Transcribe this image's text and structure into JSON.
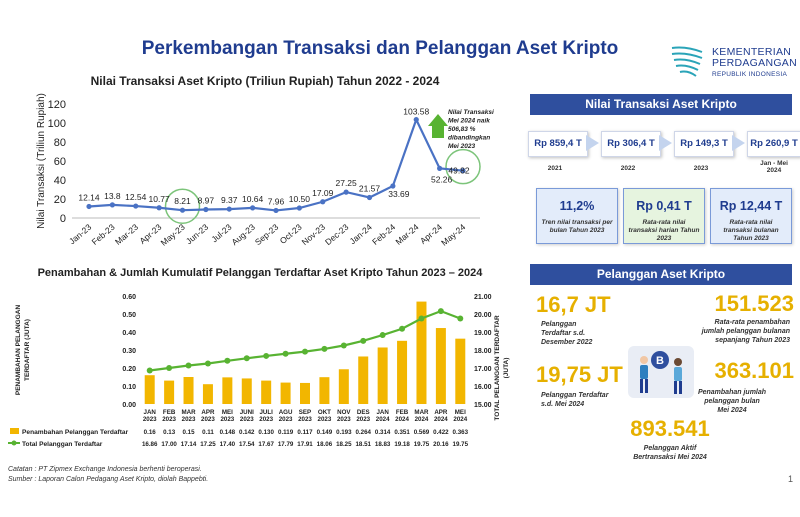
{
  "page": {
    "title": "Perkembangan Transaksi dan Pelanggan Aset Kripto",
    "logo_lines": [
      "KEMENTERIAN",
      "PERDAGANGAN",
      "REPUBLIK INDONESIA"
    ],
    "page_number": "1",
    "notes": [
      "Catatan : PT Zipmex Exchange Indonesia berhenti beroperasi.",
      "Sumber : Laporan Calon Pedagang Aset Kripto, diolah Bappebti."
    ]
  },
  "colors": {
    "brand": "#1f3c8f",
    "line": "#4a72c4",
    "bar": "#f2b600",
    "green_line": "#58b332",
    "banner": "#2f4f9e",
    "kpi": "#e6b000"
  },
  "chart_data": [
    {
      "type": "line",
      "title": "Nilai Transaksi Aset Kripto (Triliun Rupiah) Tahun 2022 - 2024",
      "xlabel": "",
      "ylabel": "Nilai Transaksi (Triliun Rupiah)",
      "ylim": [
        0,
        120
      ],
      "yticks": [
        "0",
        "20",
        "40",
        "60",
        "80",
        "100",
        "120"
      ],
      "categories": [
        "Jan-23",
        "Feb-23",
        "Mar-23",
        "Apr-23",
        "May-23",
        "Jun-23",
        "Jul-23",
        "Aug-23",
        "Sep-23",
        "Oct-23",
        "Nov-23",
        "Dec-23",
        "Jan-24",
        "Feb-24",
        "Mar-24",
        "Apr-24",
        "May-24"
      ],
      "values": [
        12.14,
        13.8,
        12.54,
        10.77,
        8.21,
        8.97,
        9.37,
        10.64,
        7.96,
        10.5,
        17.09,
        27.25,
        21.57,
        33.69,
        103.58,
        52.26,
        49.82
      ],
      "value_labels": [
        "12.14",
        "13.8",
        "12.54",
        "10.77",
        "8.21",
        "8.97",
        "9.37",
        "10.64",
        "7.96",
        "10.50",
        "17.09",
        "27.25",
        "21.57",
        "33.69",
        "103.58",
        "52.26",
        "49.82"
      ],
      "highlighted": [
        "May-23",
        "May-24"
      ],
      "annotation": [
        "Nilai Transaksi",
        "Mei 2024 naik",
        "506,83 %",
        "dibandingkan",
        "Mei 2023"
      ],
      "grid": false
    },
    {
      "type": "bar",
      "title": "Penambahan & Jumlah Kumulatif Pelanggan Terdaftar Aset Kripto Tahun 2023 – 2024",
      "categories": [
        "JAN 2023",
        "FEB 2023",
        "MAR 2023",
        "APR 2023",
        "MEI 2023",
        "JUNI 2023",
        "JULI 2023",
        "AGU 2023",
        "SEP 2023",
        "OKT 2023",
        "NOV 2023",
        "DES 2023",
        "JAN 2024",
        "FEB 2024",
        "MAR 2024",
        "APR 2024",
        "MEI 2024"
      ],
      "ylabel": "PENAMBAHAN PELANGGAN TERDAFTAR (JUTA)",
      "y2label": "TOTAL PELANGGAN TERDAFTAR (JUTA)",
      "ylim": [
        0,
        0.6
      ],
      "y2lim": [
        15,
        21
      ],
      "yticks": [
        "0.00",
        "0.10",
        "0.20",
        "0.30",
        "0.40",
        "0.50",
        "0.60"
      ],
      "y2ticks": [
        "15.00",
        "16.00",
        "17.00",
        "18.00",
        "19.00",
        "20.00",
        "21.00"
      ],
      "legend_position": "bottom-left",
      "series": [
        {
          "name": "Penambahan Pelanggan Terdaftar",
          "type": "bar",
          "values": [
            0.16,
            0.13,
            0.15,
            0.11,
            0.148,
            0.142,
            0.13,
            0.119,
            0.117,
            0.149,
            0.193,
            0.264,
            0.314,
            0.351,
            0.569,
            0.422,
            0.363
          ],
          "labels": [
            "0.16",
            "0.13",
            "0.15",
            "0.11",
            "0.148",
            "0.142",
            "0.130",
            "0.119",
            "0.117",
            "0.149",
            "0.193",
            "0.264",
            "0.314",
            "0.351",
            "0.569",
            "0.422",
            "0.363"
          ]
        },
        {
          "name": "Total Pelanggan Terdaftar",
          "type": "line",
          "values": [
            16.86,
            17.0,
            17.14,
            17.25,
            17.4,
            17.54,
            17.67,
            17.79,
            17.91,
            18.06,
            18.25,
            18.51,
            18.83,
            19.18,
            19.75,
            20.16,
            19.75
          ],
          "labels": [
            "16.86",
            "17.00",
            "17.14",
            "17.25",
            "17.40",
            "17.54",
            "17.67",
            "17.79",
            "17.91",
            "18.06",
            "18.25",
            "18.51",
            "18.83",
            "19.18",
            "19.75",
            "20.16",
            "19.75"
          ]
        }
      ]
    }
  ],
  "transaksi": {
    "banner": "Nilai Transaksi Aset Kripto",
    "years": [
      {
        "value": "Rp 859,4 T",
        "year": "2021"
      },
      {
        "value": "Rp 306,4 T",
        "year": "2022"
      },
      {
        "value": "Rp 149,3 T",
        "year": "2023"
      },
      {
        "value": "Rp 260,9 T",
        "year": "Jan - Mei\n2024"
      }
    ],
    "summary": [
      {
        "big": "11,2%",
        "small": "Tren nilai transaksi per bulan Tahun 2023"
      },
      {
        "big": "Rp 0,41 T",
        "small": "Rata-rata nilai transaksi harian Tahun 2023"
      },
      {
        "big": "Rp 12,44 T",
        "small": "Rata-rata nilai transaksi bulanan Tahun 2023"
      }
    ]
  },
  "pelanggan": {
    "banner": "Pelanggan Aset Kripto",
    "kpis": [
      {
        "value": "16,7 JT",
        "desc": "Pelanggan\nTerdaftar s.d.\nDesember 2022"
      },
      {
        "value": "151.523",
        "desc": "Rata-rata penambahan\njumlah pelanggan bulanan\nsepanjang Tahun 2023"
      },
      {
        "value": "19,75 JT",
        "desc": "Pelanggan Terdaftar\ns.d. Mei 2024"
      },
      {
        "value": "363.101",
        "desc": "Penambahan jumlah\npelanggan bulan\nMei 2024"
      },
      {
        "value": "893.541",
        "desc": "Pelanggan Aktif\nBertransaksi Mei 2024"
      }
    ]
  }
}
